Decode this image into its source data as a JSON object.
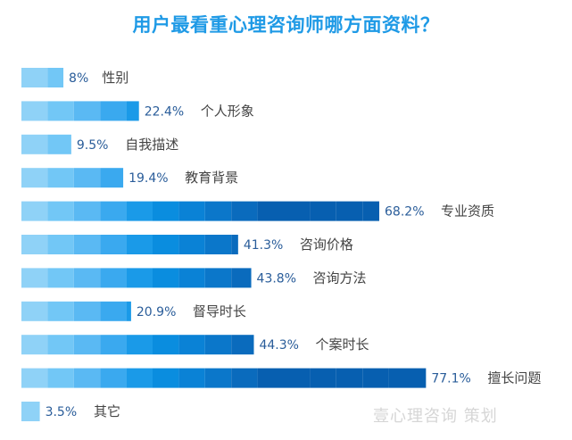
{
  "title": "用户最看重心理咨询师哪方面资料？",
  "watermark": "壹心理咨询 策划",
  "colors": {
    "segment_palette": [
      "#8fd2f7",
      "#72c7f6",
      "#5ab9f3",
      "#3aa9ef",
      "#1a9ae8",
      "#0a8ddf",
      "#0a82d6",
      "#0b77ca",
      "#0a6bbd",
      "#075fb0"
    ],
    "value_text": "#2a5d9a",
    "category_text": "#444444",
    "title": "#1f9ae6"
  },
  "chart_data": {
    "type": "bar",
    "orientation": "horizontal",
    "xlim": [
      0,
      100
    ],
    "categories": [
      "性别",
      "个人形象",
      "自我描述",
      "教育背景",
      "专业资质",
      "咨询价格",
      "咨询方法",
      "督导时长",
      "个案时长",
      "擅长问题",
      "其它"
    ],
    "values": [
      8,
      22.4,
      9.5,
      19.4,
      68.2,
      41.3,
      43.8,
      20.9,
      44.3,
      77.1,
      3.5
    ],
    "value_labels": [
      "8%",
      "22.4%",
      "9.5%",
      "19.4%",
      "68.2%",
      "41.3%",
      "43.8%",
      "20.9%",
      "44.3%",
      "77.1%",
      "3.5%"
    ]
  }
}
